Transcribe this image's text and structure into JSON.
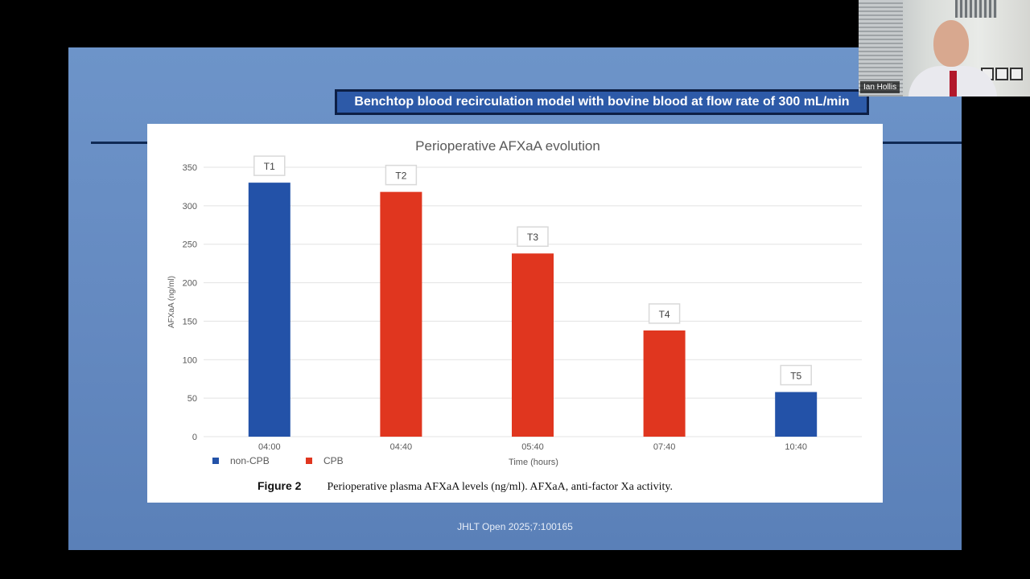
{
  "slide": {
    "banner": "Benchtop blood recirculation model with bovine blood at flow rate of 300 mL/min",
    "caption_label": "Figure 2",
    "caption_text": "Perioperative plasma AFXaA levels (ng/ml). AFXaA, anti-factor Xa activity.",
    "citation": "JHLT Open 2025;7:100165"
  },
  "webcam": {
    "participant_name": "Ian Hollis"
  },
  "chart_data": {
    "type": "bar",
    "title": "Perioperative AFXaA evolution",
    "xlabel": "Time (hours)",
    "ylabel": "AFXaA (ng/ml)",
    "ylim": [
      0,
      350
    ],
    "yticks": [
      0,
      50,
      100,
      150,
      200,
      250,
      300,
      350
    ],
    "categories": [
      "04:00",
      "04:40",
      "05:40",
      "07:40",
      "10:40"
    ],
    "values": [
      330,
      318,
      238,
      138,
      58
    ],
    "bar_labels": [
      "T1",
      "T2",
      "T3",
      "T4",
      "T5"
    ],
    "bar_series": [
      "non-CPB",
      "CPB",
      "CPB",
      "CPB",
      "non-CPB"
    ],
    "legend": [
      {
        "name": "non-CPB",
        "color": "#2352a8"
      },
      {
        "name": "CPB",
        "color": "#e0361f"
      }
    ],
    "legend_position": "bottom-left",
    "grid": true
  }
}
